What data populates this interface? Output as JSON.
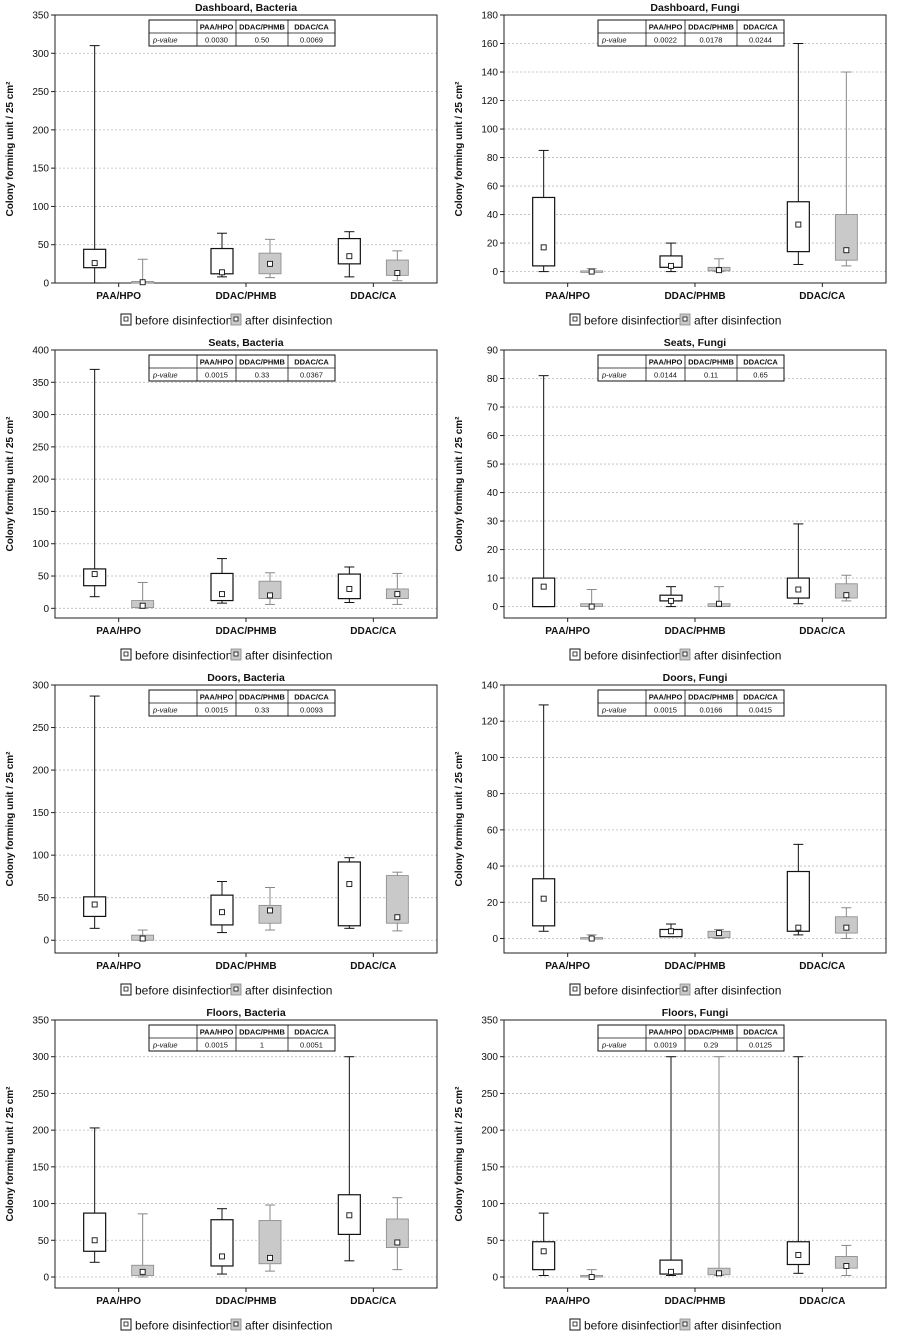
{
  "y_axis_label": "Colony forming unit / 25 cm²",
  "legend": {
    "before": "before disinfection",
    "after": "after disinfection"
  },
  "colors": {
    "before_fill": "#ffffff",
    "after_fill": "#c9c9c9",
    "axis": "#222222",
    "grid": "#bbbbbb"
  },
  "pvalue_row_label": "p-value",
  "chart_data": [
    {
      "type": "box",
      "title": "Dashboard, Bacteria",
      "ylim": [
        0,
        350
      ],
      "yticks": [
        0,
        50,
        100,
        150,
        200,
        250,
        300,
        350
      ],
      "grid": true,
      "categories": [
        "PAA/HPO",
        "DDAC/PHMB",
        "DDAC/CA"
      ],
      "pvalues": [
        "0.0030",
        "0.50",
        "0.0069"
      ],
      "series": [
        {
          "name": "before disinfection",
          "boxes": [
            {
              "min": 0,
              "q1": 20,
              "median": 26,
              "q3": 44,
              "max": 310
            },
            {
              "min": 8,
              "q1": 12,
              "median": 14,
              "q3": 45,
              "max": 65
            },
            {
              "min": 8,
              "q1": 25,
              "median": 35,
              "q3": 58,
              "max": 67
            }
          ]
        },
        {
          "name": "after disinfection",
          "boxes": [
            {
              "min": 0,
              "q1": 0,
              "median": 1,
              "q3": 2,
              "max": 31
            },
            {
              "min": 7,
              "q1": 12,
              "median": 25,
              "q3": 39,
              "max": 57
            },
            {
              "min": 3,
              "q1": 10,
              "median": 13,
              "q3": 30,
              "max": 42
            }
          ]
        }
      ]
    },
    {
      "type": "box",
      "title": "Dashboard, Fungi",
      "ylim": [
        -8,
        180
      ],
      "yticks": [
        0,
        20,
        40,
        60,
        80,
        100,
        120,
        140,
        160,
        180
      ],
      "grid": true,
      "categories": [
        "PAA/HPO",
        "DDAC/PHMB",
        "DDAC/CA"
      ],
      "pvalues": [
        "0.0022",
        "0.0178",
        "0.0244"
      ],
      "series": [
        {
          "name": "before disinfection",
          "boxes": [
            {
              "min": 0,
              "q1": 4,
              "median": 17,
              "q3": 52,
              "max": 85
            },
            {
              "min": 0,
              "q1": 3,
              "median": 4,
              "q3": 11,
              "max": 20
            },
            {
              "min": 5,
              "q1": 14,
              "median": 33,
              "q3": 49,
              "max": 160
            }
          ]
        },
        {
          "name": "after disinfection",
          "boxes": [
            {
              "min": 0,
              "q1": 0,
              "median": 0,
              "q3": 0.5,
              "max": 2
            },
            {
              "min": 0,
              "q1": 0.5,
              "median": 1,
              "q3": 3,
              "max": 9
            },
            {
              "min": 4,
              "q1": 8,
              "median": 15,
              "q3": 40,
              "max": 140
            }
          ]
        }
      ]
    },
    {
      "type": "box",
      "title": "Seats, Bacteria",
      "ylim": [
        -15,
        400
      ],
      "yticks": [
        0,
        50,
        100,
        150,
        200,
        250,
        300,
        350,
        400
      ],
      "grid": true,
      "categories": [
        "PAA/HPO",
        "DDAC/PHMB",
        "DDAC/CA"
      ],
      "pvalues": [
        "0.0015",
        "0.33",
        "0.0367"
      ],
      "series": [
        {
          "name": "before disinfection",
          "boxes": [
            {
              "min": 18,
              "q1": 35,
              "median": 53,
              "q3": 61,
              "max": 370
            },
            {
              "min": 8,
              "q1": 12,
              "median": 22,
              "q3": 54,
              "max": 77
            },
            {
              "min": 9,
              "q1": 15,
              "median": 30,
              "q3": 53,
              "max": 64
            }
          ]
        },
        {
          "name": "after disinfection",
          "boxes": [
            {
              "min": 0,
              "q1": 1,
              "median": 4,
              "q3": 12,
              "max": 40
            },
            {
              "min": 6,
              "q1": 15,
              "median": 20,
              "q3": 42,
              "max": 55
            },
            {
              "min": 6,
              "q1": 15,
              "median": 22,
              "q3": 30,
              "max": 54
            }
          ]
        }
      ]
    },
    {
      "type": "box",
      "title": "Seats, Fungi",
      "ylim": [
        -4,
        90
      ],
      "yticks": [
        0,
        10,
        20,
        30,
        40,
        50,
        60,
        70,
        80,
        90
      ],
      "grid": true,
      "categories": [
        "PAA/HPO",
        "DDAC/PHMB",
        "DDAC/CA"
      ],
      "pvalues": [
        "0.0144",
        "0.11",
        "0.65"
      ],
      "series": [
        {
          "name": "before disinfection",
          "boxes": [
            {
              "min": 0,
              "q1": 0,
              "median": 7,
              "q3": 10,
              "max": 81
            },
            {
              "min": 0,
              "q1": 2,
              "median": 2,
              "q3": 4,
              "max": 7
            },
            {
              "min": 1,
              "q1": 3,
              "median": 6,
              "q3": 10,
              "max": 29
            }
          ]
        },
        {
          "name": "after disinfection",
          "boxes": [
            {
              "min": 0,
              "q1": 0,
              "median": 0,
              "q3": 1,
              "max": 6
            },
            {
              "min": 0,
              "q1": 0,
              "median": 1,
              "q3": 1,
              "max": 7
            },
            {
              "min": 2,
              "q1": 3,
              "median": 4,
              "q3": 8,
              "max": 11
            }
          ]
        }
      ]
    },
    {
      "type": "box",
      "title": "Doors, Bacteria",
      "ylim": [
        -15,
        300
      ],
      "yticks": [
        0,
        50,
        100,
        150,
        200,
        250,
        300
      ],
      "grid": true,
      "categories": [
        "PAA/HPO",
        "DDAC/PHMB",
        "DDAC/CA"
      ],
      "pvalues": [
        "0.0015",
        "0.33",
        "0.0093"
      ],
      "series": [
        {
          "name": "before disinfection",
          "boxes": [
            {
              "min": 14,
              "q1": 28,
              "median": 42,
              "q3": 51,
              "max": 287
            },
            {
              "min": 9,
              "q1": 18,
              "median": 33,
              "q3": 53,
              "max": 69
            },
            {
              "min": 14,
              "q1": 17,
              "median": 66,
              "q3": 92,
              "max": 97
            }
          ]
        },
        {
          "name": "after disinfection",
          "boxes": [
            {
              "min": 0,
              "q1": 0,
              "median": 2,
              "q3": 6,
              "max": 12
            },
            {
              "min": 12,
              "q1": 20,
              "median": 35,
              "q3": 41,
              "max": 62
            },
            {
              "min": 11,
              "q1": 20,
              "median": 27,
              "q3": 76,
              "max": 80
            }
          ]
        }
      ]
    },
    {
      "type": "box",
      "title": "Doors, Fungi",
      "ylim": [
        -8,
        140
      ],
      "yticks": [
        0,
        20,
        40,
        60,
        80,
        100,
        120,
        140
      ],
      "grid": true,
      "categories": [
        "PAA/HPO",
        "DDAC/PHMB",
        "DDAC/CA"
      ],
      "pvalues": [
        "0.0015",
        "0.0166",
        "0.0415"
      ],
      "series": [
        {
          "name": "before disinfection",
          "boxes": [
            {
              "min": 4,
              "q1": 7,
              "median": 22,
              "q3": 33,
              "max": 129
            },
            {
              "min": 1,
              "q1": 1,
              "median": 4,
              "q3": 5,
              "max": 8
            },
            {
              "min": 2,
              "q1": 4,
              "median": 6,
              "q3": 37,
              "max": 52
            }
          ]
        },
        {
          "name": "after disinfection",
          "boxes": [
            {
              "min": 0,
              "q1": 0,
              "median": 0,
              "q3": 0.5,
              "max": 2
            },
            {
              "min": 0,
              "q1": 0.5,
              "median": 3,
              "q3": 4,
              "max": 5
            },
            {
              "min": 0,
              "q1": 3,
              "median": 6,
              "q3": 12,
              "max": 17
            }
          ]
        }
      ]
    },
    {
      "type": "box",
      "title": "Floors, Bacteria",
      "ylim": [
        -15,
        350
      ],
      "yticks": [
        0,
        50,
        100,
        150,
        200,
        250,
        300,
        350
      ],
      "grid": true,
      "categories": [
        "PAA/HPO",
        "DDAC/PHMB",
        "DDAC/CA"
      ],
      "pvalues": [
        "0.0015",
        "1",
        "0.0051"
      ],
      "series": [
        {
          "name": "before disinfection",
          "boxes": [
            {
              "min": 20,
              "q1": 35,
              "median": 50,
              "q3": 87,
              "max": 203
            },
            {
              "min": 4,
              "q1": 15,
              "median": 28,
              "q3": 78,
              "max": 93
            },
            {
              "min": 22,
              "q1": 58,
              "median": 84,
              "q3": 112,
              "max": 300
            }
          ]
        },
        {
          "name": "after disinfection",
          "boxes": [
            {
              "min": 0,
              "q1": 2,
              "median": 7,
              "q3": 16,
              "max": 86
            },
            {
              "min": 8,
              "q1": 18,
              "median": 26,
              "q3": 77,
              "max": 98
            },
            {
              "min": 10,
              "q1": 40,
              "median": 47,
              "q3": 79,
              "max": 108
            }
          ]
        }
      ]
    },
    {
      "type": "box",
      "title": "Floors, Fungi",
      "ylim": [
        -15,
        350
      ],
      "yticks": [
        0,
        50,
        100,
        150,
        200,
        250,
        300,
        350
      ],
      "grid": true,
      "categories": [
        "PAA/HPO",
        "DDAC/PHMB",
        "DDAC/CA"
      ],
      "pvalues": [
        "0.0019",
        "0.29",
        "0.0125"
      ],
      "series": [
        {
          "name": "before disinfection",
          "boxes": [
            {
              "min": 2,
              "q1": 10,
              "median": 35,
              "q3": 48,
              "max": 87
            },
            {
              "min": 2,
              "q1": 4,
              "median": 7,
              "q3": 23,
              "max": 300
            },
            {
              "min": 5,
              "q1": 17,
              "median": 30,
              "q3": 48,
              "max": 300
            }
          ]
        },
        {
          "name": "after disinfection",
          "boxes": [
            {
              "min": 0,
              "q1": 0,
              "median": 0,
              "q3": 2,
              "max": 10
            },
            {
              "min": 2,
              "q1": 3,
              "median": 5,
              "q3": 12,
              "max": 300
            },
            {
              "min": 2,
              "q1": 12,
              "median": 15,
              "q3": 28,
              "max": 43
            }
          ]
        }
      ]
    }
  ]
}
